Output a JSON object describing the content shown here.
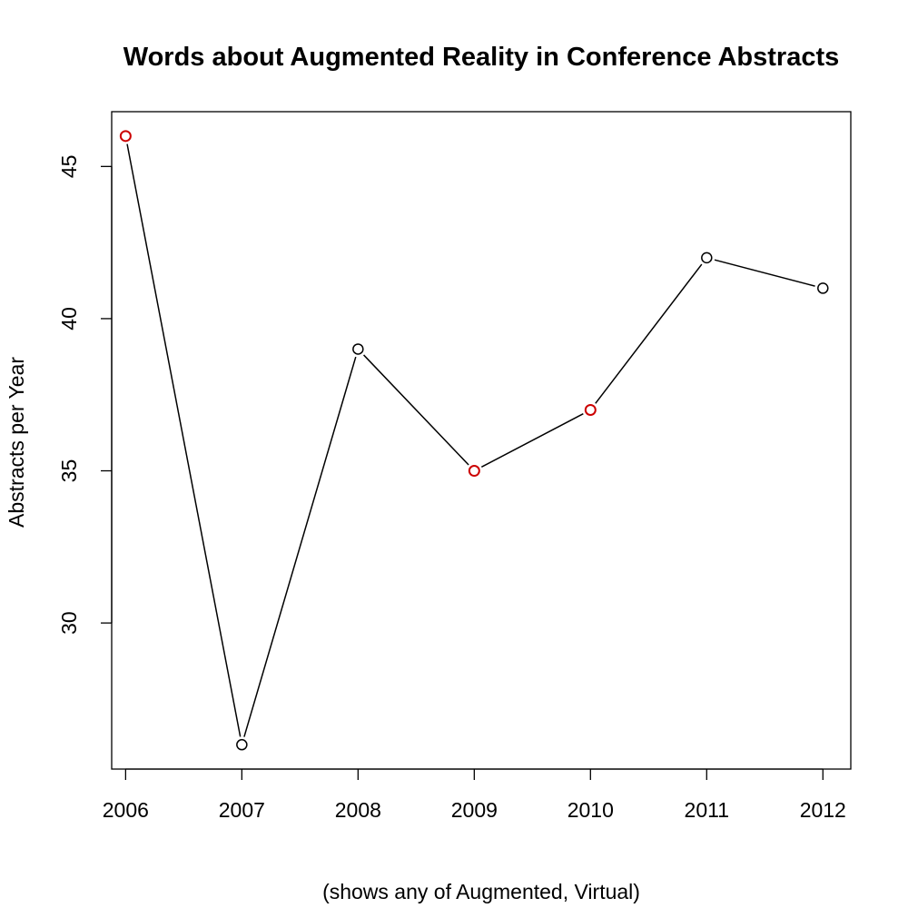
{
  "chart_data": {
    "type": "line",
    "title": "Words about Augmented Reality in Conference Abstracts",
    "xlabel": "(shows any of Augmented, Virtual)",
    "ylabel": "Abstracts per Year",
    "x": [
      2006,
      2007,
      2008,
      2009,
      2010,
      2011,
      2012
    ],
    "x_tick_labels": [
      "2006",
      "2007",
      "2008",
      "2009",
      "2010",
      "2011",
      "2012"
    ],
    "y_ticks": [
      30,
      35,
      40,
      45
    ],
    "y_tick_labels": [
      "30",
      "35",
      "40",
      "45"
    ],
    "series": [
      {
        "values": [
          46,
          26,
          39,
          35,
          37,
          42,
          41
        ],
        "highlighted": [
          true,
          false,
          false,
          true,
          true,
          false,
          false
        ]
      }
    ],
    "xlim": [
      2005.88,
      2012.24
    ],
    "ylim": [
      25.2,
      46.8
    ],
    "grid": false,
    "colors": {
      "line": "#000000",
      "marker": "#000000",
      "marker_highlight": "#cc0000",
      "background": "#ffffff"
    }
  }
}
